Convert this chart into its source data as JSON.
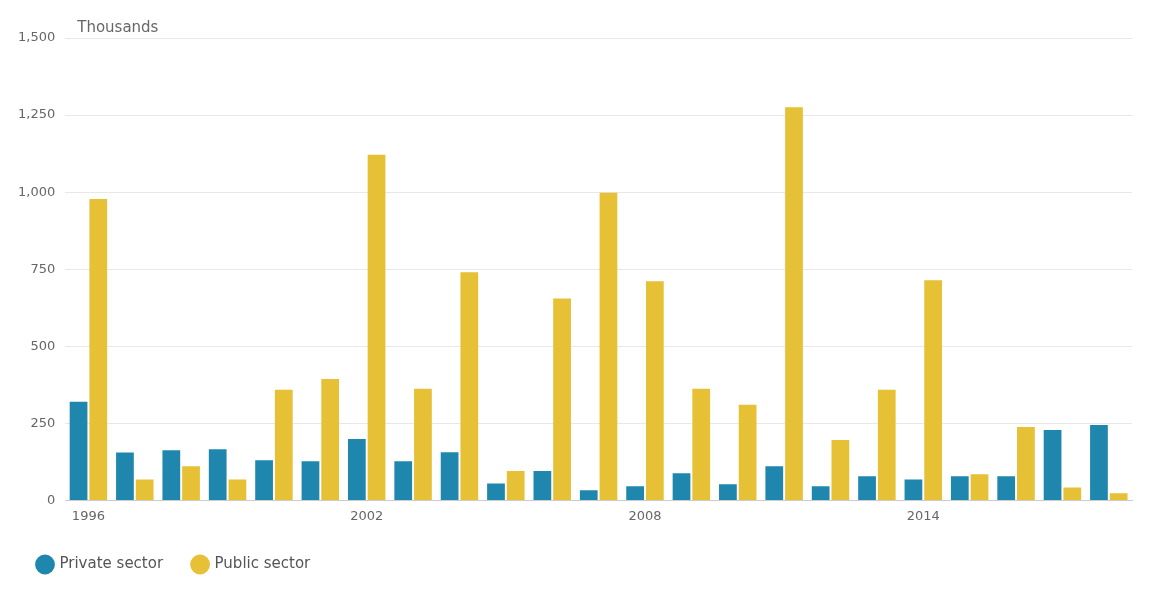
{
  "chart_data": {
    "type": "bar",
    "ylabel": "Thousands",
    "categories": [
      "1996",
      null,
      null,
      null,
      null,
      null,
      "2002",
      null,
      null,
      null,
      null,
      null,
      "2008",
      null,
      null,
      null,
      null,
      null,
      "2014",
      null,
      null,
      null,
      null
    ],
    "series": [
      {
        "name": "Private sector",
        "color": "#1f87ad",
        "values": [
          320,
          155,
          163,
          166,
          130,
          127,
          199,
          127,
          156,
          55,
          95,
          33,
          46,
          88,
          52,
          111,
          46,
          78,
          68,
          78,
          78,
          228,
          245
        ]
      },
      {
        "name": "Public sector",
        "color": "#e6c035",
        "values": [
          978,
          68,
          111,
          68,
          359,
          394,
          1121,
          362,
          740,
          95,
          655,
          998,
          711,
          362,
          310,
          1275,
          196,
          359,
          714,
          85,
          238,
          42,
          23
        ]
      }
    ],
    "ylim": [
      0,
      1500
    ],
    "yticks": [
      0,
      250,
      500,
      750,
      {
        "value": 1000,
        "label": "1,000"
      },
      {
        "value": 1250,
        "label": "1,250"
      },
      {
        "value": 1500,
        "label": "1,500"
      }
    ],
    "grid": "y",
    "legend": "bottom left"
  }
}
